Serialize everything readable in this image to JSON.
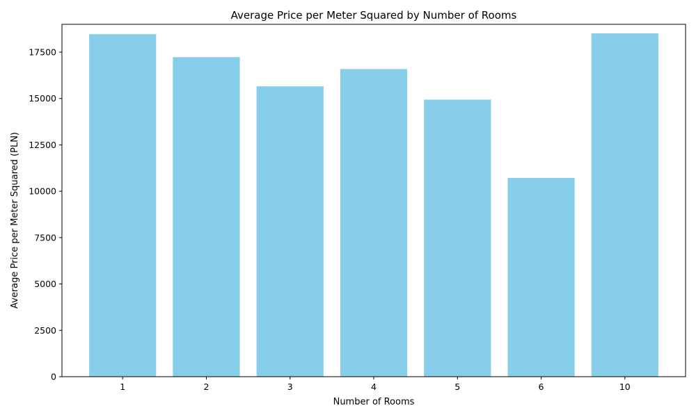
{
  "chart_data": {
    "type": "bar",
    "title": "Average Price per Meter Squared by Number of Rooms",
    "xlabel": "Number of Rooms",
    "ylabel": "Average Price per Meter Squared (PLN)",
    "categories": [
      "1",
      "2",
      "3",
      "4",
      "5",
      "6",
      "10"
    ],
    "values": [
      18470,
      17230,
      15660,
      16590,
      14940,
      10720,
      18510
    ],
    "ylim": [
      0,
      19000
    ],
    "yticks": [
      0,
      2500,
      5000,
      7500,
      10000,
      12500,
      15000,
      17500
    ],
    "grid": false,
    "bar_color": "#87CEEB"
  }
}
